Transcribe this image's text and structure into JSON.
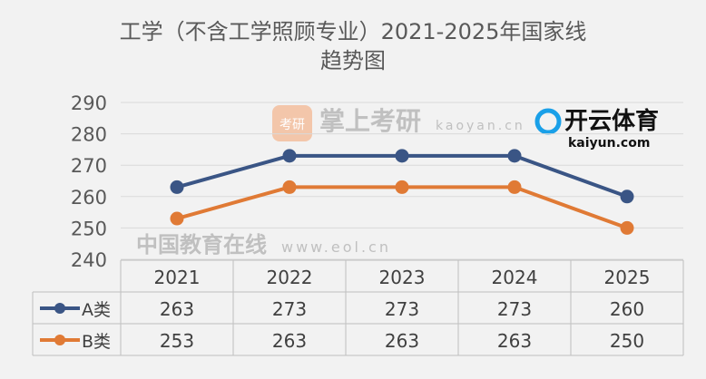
{
  "chart_data": {
    "type": "line",
    "title_line1": "工学（不含工学照顾专业）2021-2025年国家线",
    "title_line2": "趋势图",
    "categories": [
      "2021",
      "2022",
      "2023",
      "2024",
      "2025"
    ],
    "series": [
      {
        "name": "A类",
        "values": [
          263,
          273,
          273,
          273,
          260
        ],
        "color": "#3a5585"
      },
      {
        "name": "B类",
        "values": [
          253,
          263,
          263,
          263,
          250
        ],
        "color": "#e07a35"
      }
    ],
    "ylim": [
      240,
      290
    ],
    "yticks": [
      240,
      250,
      260,
      270,
      280,
      290
    ],
    "grid": true,
    "legend": "data-table"
  },
  "watermarks": [
    "中国教育在线",
    "www.eol.cn",
    "掌上考研",
    "kaoyan.cn",
    "考研",
    "开云体育",
    "kaiyun.com"
  ]
}
